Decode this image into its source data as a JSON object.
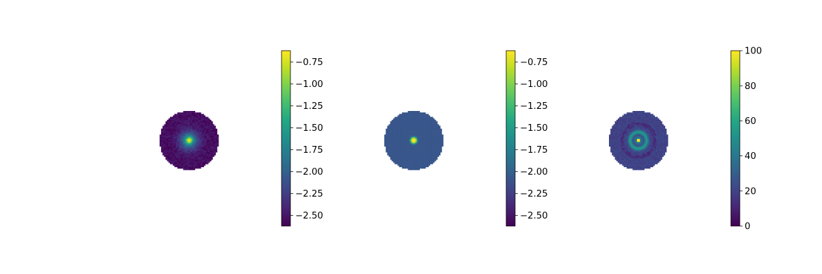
{
  "chart_data": [
    {
      "type": "heatmap",
      "title": "",
      "mask": "circular",
      "pattern": "diffuse",
      "colormap": "viridis",
      "colorbar": {
        "range": [
          -2.62,
          -0.62
        ],
        "ticks": [
          -2.5,
          -2.25,
          -2.0,
          -1.75,
          -1.5,
          -1.25,
          -1.0,
          -0.75
        ],
        "tick_labels": [
          "−2.50",
          "−2.25",
          "−2.00",
          "−1.75",
          "−1.50",
          "−1.25",
          "−1.00",
          "−0.75"
        ]
      },
      "center_value": -0.62,
      "edge_value": -2.55,
      "background_value": -2.3
    },
    {
      "type": "heatmap",
      "title": "",
      "mask": "circular",
      "pattern": "point",
      "colormap": "viridis",
      "colorbar": {
        "range": [
          -2.62,
          -0.62
        ],
        "ticks": [
          -2.5,
          -2.25,
          -2.0,
          -1.75,
          -1.5,
          -1.25,
          -1.0,
          -0.75
        ],
        "tick_labels": [
          "−2.50",
          "−2.25",
          "−2.00",
          "−1.75",
          "−1.50",
          "−1.25",
          "−1.00",
          "−0.75"
        ]
      },
      "center_value": -0.62,
      "background_value": -2.08
    },
    {
      "type": "heatmap",
      "title": "",
      "mask": "circular",
      "pattern": "ring",
      "colormap": "viridis",
      "colorbar": {
        "range": [
          0,
          100
        ],
        "ticks": [
          0,
          20,
          40,
          60,
          80,
          100
        ],
        "tick_labels": [
          "0",
          "20",
          "40",
          "60",
          "80",
          "100"
        ]
      },
      "center_value": 100,
      "ring_value": 55,
      "background_value": 20
    }
  ]
}
